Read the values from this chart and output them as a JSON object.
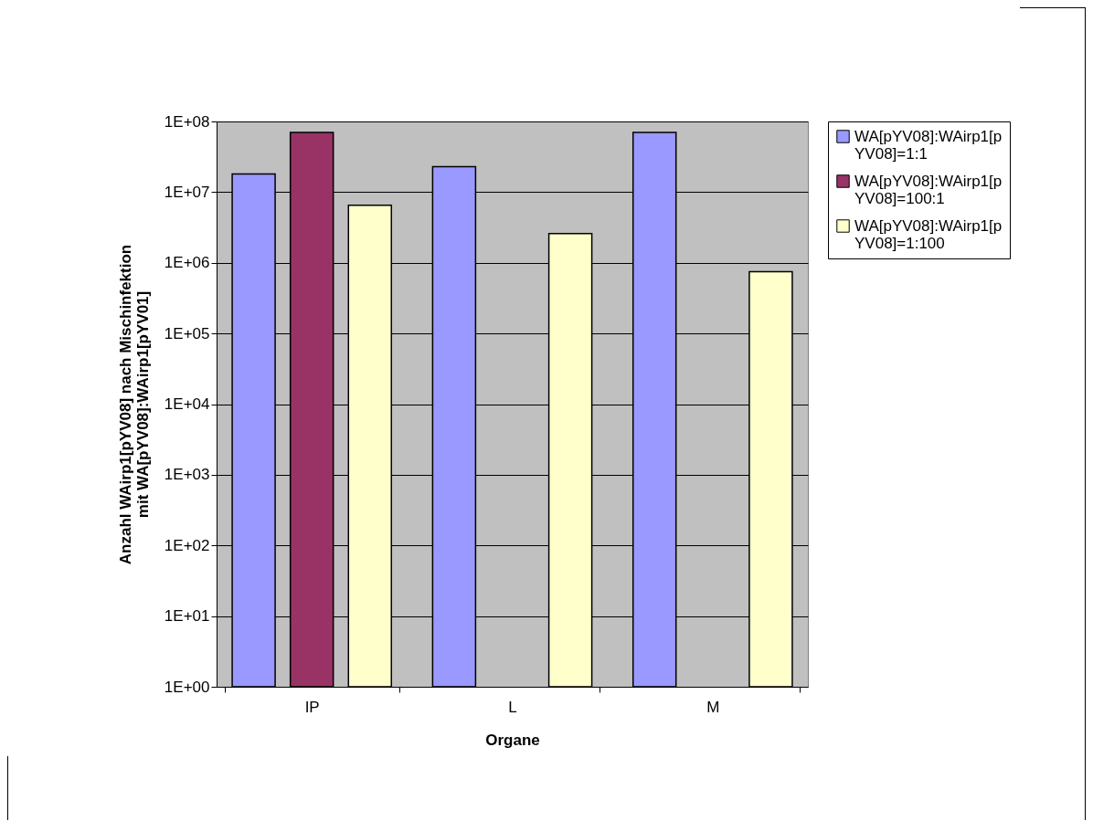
{
  "chart_data": {
    "type": "bar",
    "xlabel": "Organe",
    "ylabel": "Anzahl WAirp1[pYV08] nach Mischinfektion mit WA[pYV08]:WAirp1[pYV01]",
    "categories": [
      "IP",
      "L",
      "M"
    ],
    "series": [
      {
        "name": "WA[pYV08]:WAirp1[pYV08]=1:1",
        "color": "#9999ff",
        "values": [
          18000000,
          23000000,
          70000000
        ]
      },
      {
        "name": "WA[pYV08]:WAirp1[pYV08]=100:1",
        "color": "#993366",
        "values": [
          70000000,
          null,
          null
        ]
      },
      {
        "name": "WA[pYV08]:WAirp1[pYV08]=1:100",
        "color": "#ffffcc",
        "values": [
          6500000,
          2600000,
          750000
        ]
      }
    ],
    "log": true,
    "ylim": [
      1,
      100000000
    ],
    "yticks": [
      {
        "value": 1,
        "label": "1E+00"
      },
      {
        "value": 10,
        "label": "1E+01"
      },
      {
        "value": 100,
        "label": "1E+02"
      },
      {
        "value": 1000,
        "label": "1E+03"
      },
      {
        "value": 10000,
        "label": "1E+04"
      },
      {
        "value": 100000,
        "label": "1E+05"
      },
      {
        "value": 1000000,
        "label": "1E+06"
      },
      {
        "value": 10000000,
        "label": "1E+07"
      },
      {
        "value": 100000000,
        "label": "1E+08"
      }
    ],
    "grid": "y",
    "legend": "right"
  }
}
